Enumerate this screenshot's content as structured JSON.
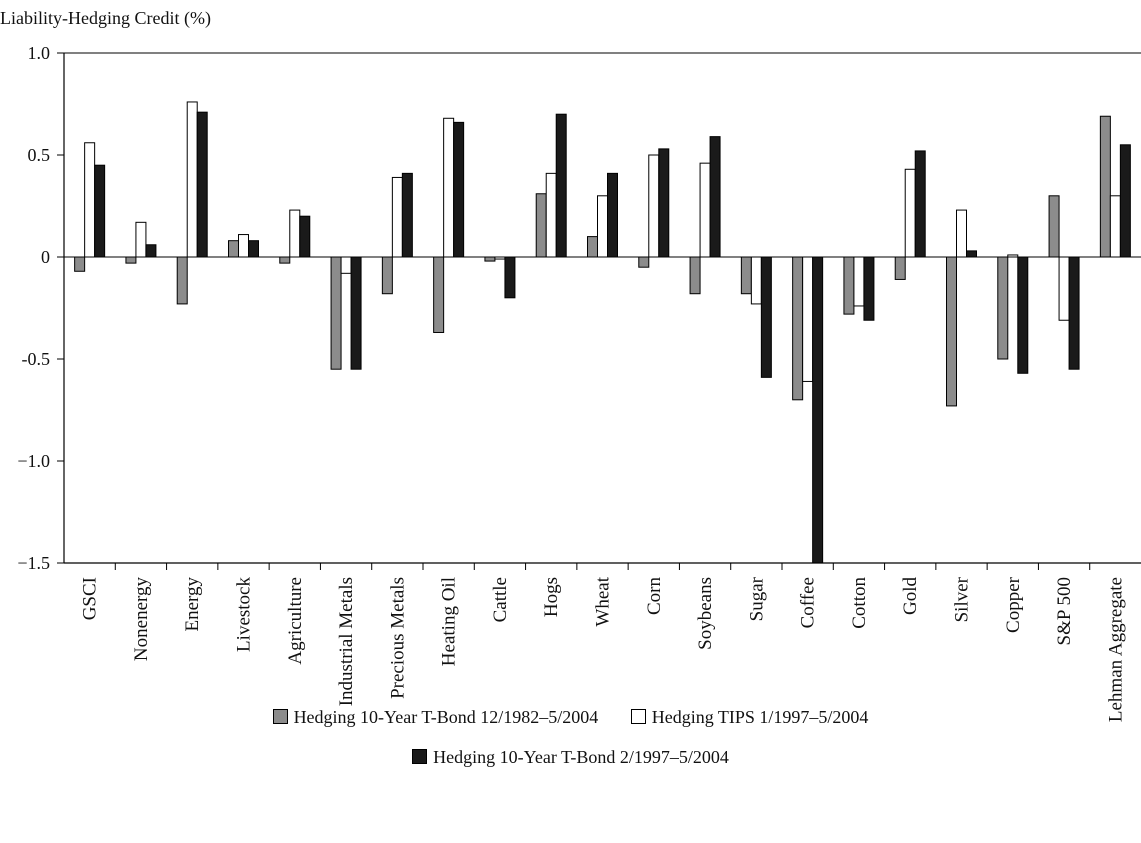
{
  "chart_data": {
    "type": "bar",
    "title": "",
    "ylabel": "Liability-Hedging Credit (%)",
    "xlabel": "",
    "ylim": [
      -1.5,
      1.0
    ],
    "yticks": [
      1.0,
      0.5,
      0,
      -0.5,
      -1.0,
      -1.5
    ],
    "ytick_labels": [
      "1.0",
      "0.5",
      "0",
      "-0.5",
      "−1.0",
      "−1.5"
    ],
    "grid": false,
    "legend_position": "bottom",
    "categories": [
      "GSCI",
      "Nonenergy",
      "Energy",
      "Livestock",
      "Agriculture",
      "Industrial Metals",
      "Precious Metals",
      "Heating Oil",
      "Cattle",
      "Hogs",
      "Wheat",
      "Corn",
      "Soybeans",
      "Sugar",
      "Coffee",
      "Cotton",
      "Gold",
      "Silver",
      "Copper",
      "S&P 500",
      "Lehman Aggregate"
    ],
    "series": [
      {
        "name": "Hedging 10-Year T-Bond 12/1982–5/2004",
        "color": "#8c8c8c",
        "values": [
          -0.07,
          -0.03,
          -0.23,
          0.08,
          -0.03,
          -0.55,
          -0.18,
          -0.37,
          -0.02,
          0.31,
          0.1,
          -0.05,
          -0.18,
          -0.18,
          -0.7,
          -0.28,
          -0.11,
          -0.73,
          -0.5,
          0.3,
          0.69
        ]
      },
      {
        "name": "Hedging TIPS 1/1997–5/2004",
        "color": "#ffffff",
        "values": [
          0.56,
          0.17,
          0.76,
          0.11,
          0.23,
          -0.08,
          0.39,
          0.68,
          -0.01,
          0.41,
          0.3,
          0.5,
          0.46,
          -0.23,
          -0.61,
          -0.24,
          0.43,
          0.23,
          0.01,
          -0.31,
          0.3
        ]
      },
      {
        "name": "Hedging 10-Year T-Bond 2/1997–5/2004",
        "color": "#1a1a1a",
        "values": [
          0.45,
          0.06,
          0.71,
          0.08,
          0.2,
          -0.55,
          0.41,
          0.66,
          -0.2,
          0.7,
          0.41,
          0.53,
          0.59,
          -0.59,
          -1.5,
          -0.31,
          0.52,
          0.03,
          -0.57,
          -0.55,
          0.55
        ]
      }
    ]
  }
}
